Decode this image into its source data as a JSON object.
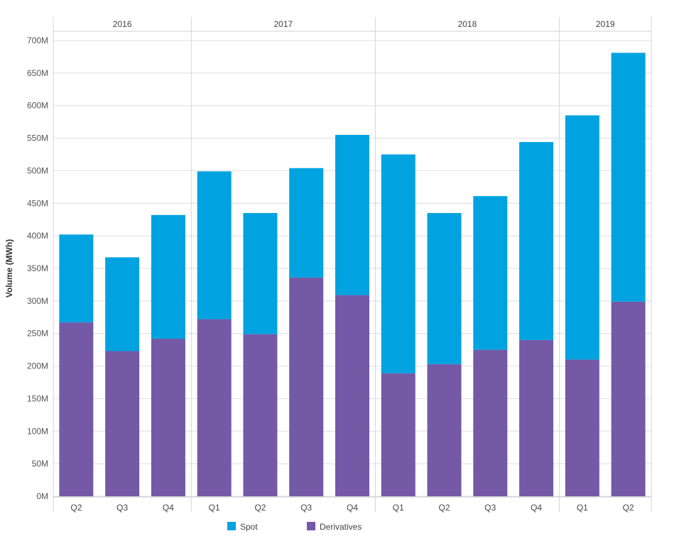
{
  "chart_data": {
    "type": "bar",
    "stacked": true,
    "ylabel": "Volume (MWh)",
    "ylim": [
      0,
      700000000
    ],
    "ytick_labels": [
      "0M",
      "50M",
      "100M",
      "150M",
      "200M",
      "250M",
      "300M",
      "350M",
      "400M",
      "450M",
      "500M",
      "550M",
      "600M",
      "650M",
      "700M"
    ],
    "years": [
      {
        "label": "2016",
        "quarters": [
          "Q2",
          "Q3",
          "Q4"
        ]
      },
      {
        "label": "2017",
        "quarters": [
          "Q1",
          "Q2",
          "Q3",
          "Q4"
        ]
      },
      {
        "label": "2018",
        "quarters": [
          "Q1",
          "Q2",
          "Q3",
          "Q4"
        ]
      },
      {
        "label": "2019",
        "quarters": [
          "Q1",
          "Q2"
        ]
      }
    ],
    "categories": [
      "Q2",
      "Q3",
      "Q4",
      "Q1",
      "Q2",
      "Q3",
      "Q4",
      "Q1",
      "Q2",
      "Q3",
      "Q4",
      "Q1",
      "Q2"
    ],
    "series": [
      {
        "name": "Derivatives",
        "color": "#7459a7",
        "values": [
          267000000,
          223000000,
          242000000,
          272000000,
          249000000,
          336000000,
          309000000,
          189000000,
          203000000,
          225000000,
          240000000,
          210000000,
          299000000
        ]
      },
      {
        "name": "Spot",
        "color": "#00a3e0",
        "values": [
          135000000,
          144000000,
          190000000,
          227000000,
          186000000,
          168000000,
          246000000,
          336000000,
          232000000,
          236000000,
          304000000,
          375000000,
          382000000
        ]
      }
    ],
    "legend": {
      "placement": "bottom",
      "items": [
        {
          "label": "Spot",
          "color": "#00a3e0"
        },
        {
          "label": "Derivatives",
          "color": "#7459a7"
        }
      ]
    },
    "grid": true
  }
}
